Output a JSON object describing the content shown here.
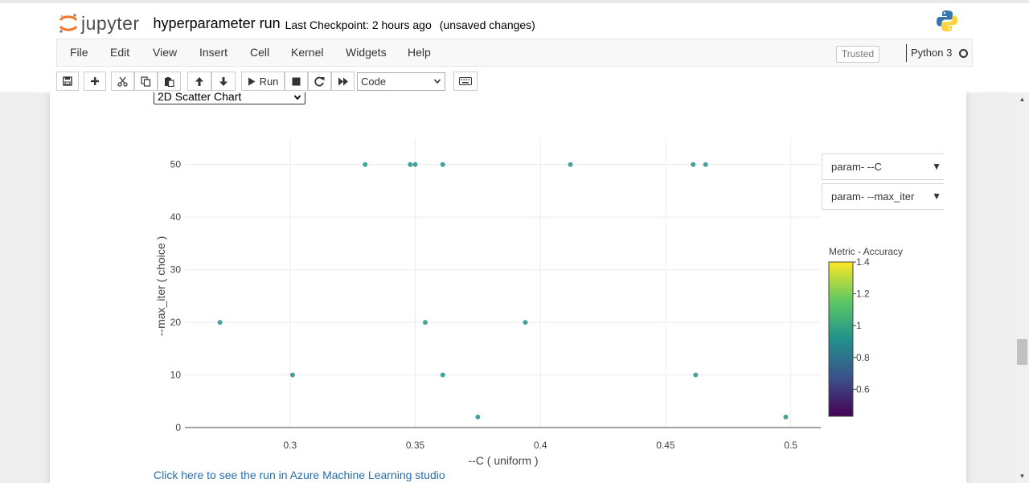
{
  "header": {
    "logo_text": "jupyter",
    "notebook_name": "hyperparameter run",
    "checkpoint": "Last Checkpoint: 2 hours ago",
    "autosave": "(unsaved changes)"
  },
  "menu": {
    "items": [
      "File",
      "Edit",
      "View",
      "Insert",
      "Cell",
      "Kernel",
      "Widgets",
      "Help"
    ],
    "trusted": "Trusted",
    "kernel": "Python 3"
  },
  "toolbar": {
    "run_label": "Run",
    "cell_type": "Code"
  },
  "widget": {
    "chart_type": "2D Scatter Chart",
    "dropdown_x": "param- --C",
    "dropdown_y": "param- --max_iter",
    "link_text": "Click here to see the run in Azure Machine Learning studio"
  },
  "chart_data": {
    "type": "scatter",
    "xlabel": "--C ( uniform )",
    "ylabel": "--max_iter ( choice )",
    "xlim": [
      0.258,
      0.512
    ],
    "ylim": [
      0,
      55
    ],
    "xticks": [
      "0.3",
      "0.35",
      "0.4",
      "0.45",
      "0.5"
    ],
    "xtick_values": [
      0.3,
      0.35,
      0.4,
      0.45,
      0.5
    ],
    "yticks": [
      "0",
      "10",
      "20",
      "30",
      "40",
      "50"
    ],
    "ytick_values": [
      0,
      10,
      20,
      30,
      40,
      50
    ],
    "grid": true,
    "point_color": "#45a39b",
    "points": [
      {
        "x": 0.33,
        "y": 50
      },
      {
        "x": 0.348,
        "y": 50
      },
      {
        "x": 0.35,
        "y": 50
      },
      {
        "x": 0.361,
        "y": 50
      },
      {
        "x": 0.412,
        "y": 50
      },
      {
        "x": 0.461,
        "y": 50
      },
      {
        "x": 0.466,
        "y": 50
      },
      {
        "x": 0.272,
        "y": 20
      },
      {
        "x": 0.354,
        "y": 20
      },
      {
        "x": 0.394,
        "y": 20
      },
      {
        "x": 0.301,
        "y": 10
      },
      {
        "x": 0.361,
        "y": 10
      },
      {
        "x": 0.462,
        "y": 10
      },
      {
        "x": 0.375,
        "y": 2
      },
      {
        "x": 0.498,
        "y": 2
      }
    ],
    "colorbar": {
      "title": "Metric - Accuracy",
      "ticks": [
        "1.4",
        "1.2",
        "1",
        "0.8",
        "0.6"
      ],
      "tick_values": [
        1.4,
        1.2,
        1.0,
        0.8,
        0.6
      ],
      "range": [
        0.43,
        1.4
      ],
      "colors": [
        "#440154",
        "#3b528b",
        "#21918c",
        "#5ec962",
        "#fde725"
      ]
    }
  }
}
